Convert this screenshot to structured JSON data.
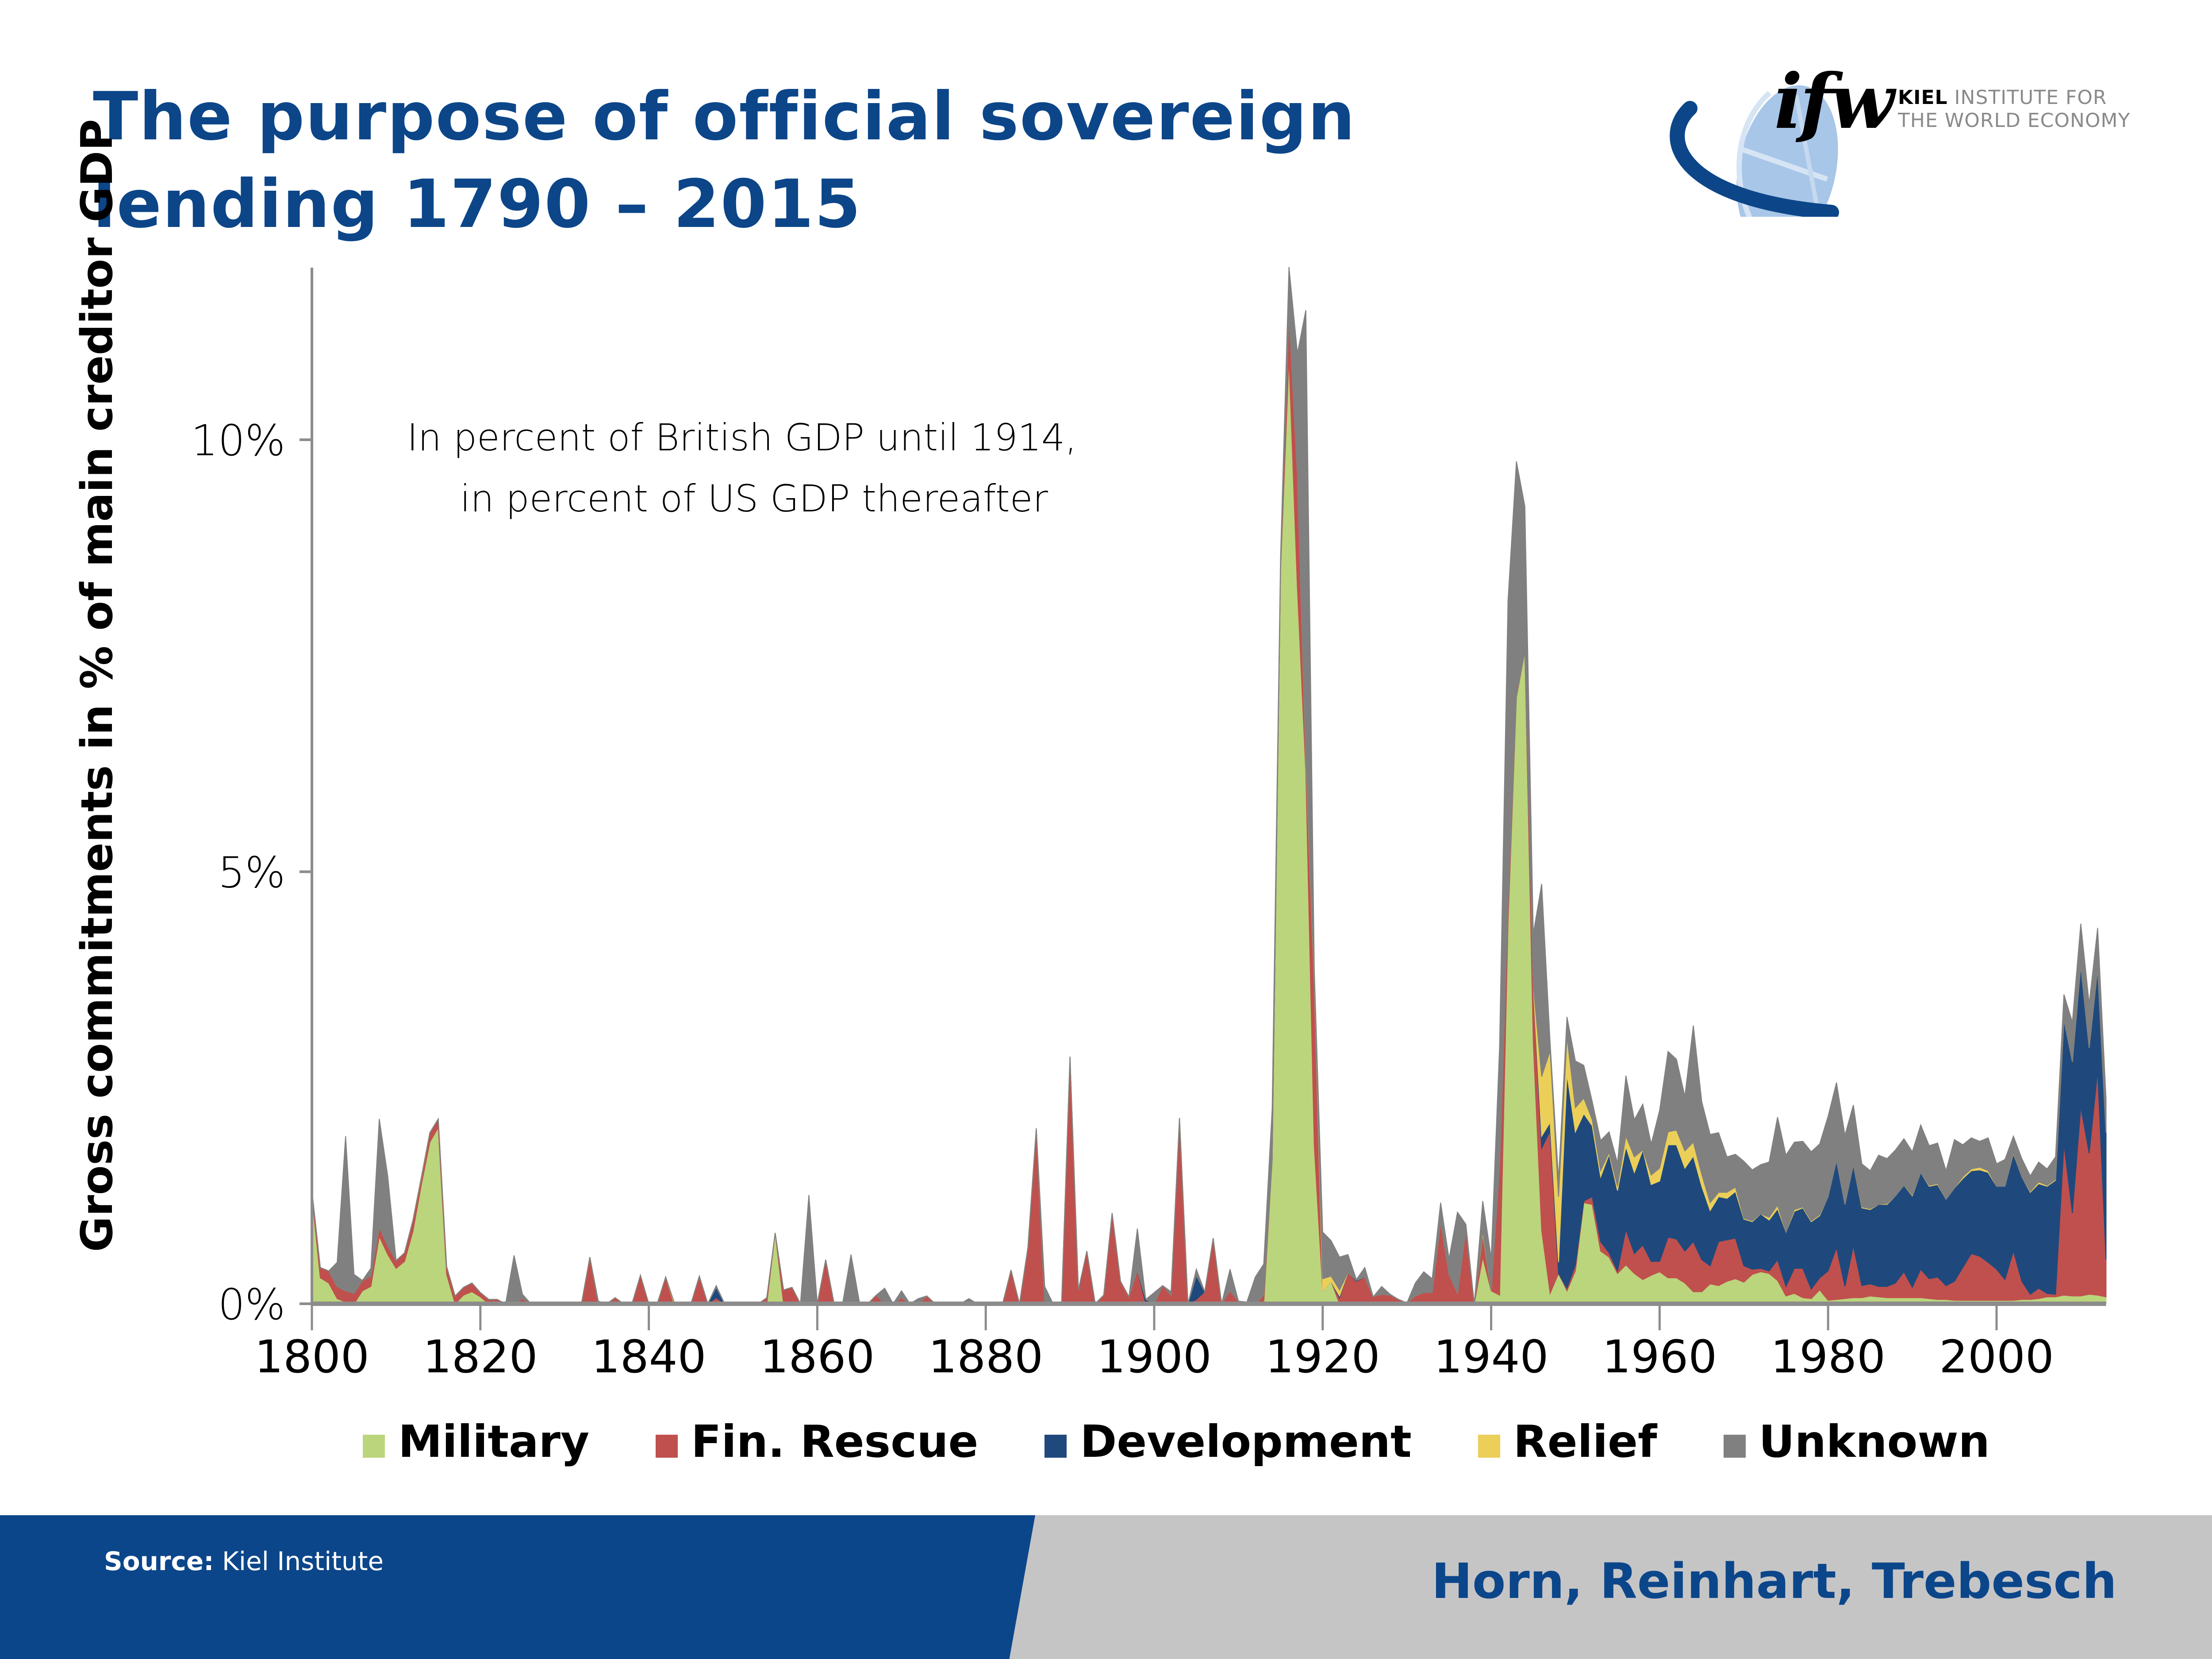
{
  "header": {
    "title_line1": "The purpose of official sovereign",
    "title_line2": "lending 1790 – 2015"
  },
  "logo": {
    "mark": "ifw",
    "line1_bold": "KIEL",
    "line1_rest": " INSTITUTE FOR",
    "line2": "THE WORLD ECONOMY",
    "icon": "globe-icon"
  },
  "footer": {
    "source_label": "Source:",
    "source_value": " Kiel Institute",
    "authors": "Horn, Reinhart, Trebesch"
  },
  "colors": {
    "title": "#0c4689",
    "military": "#bbd57c",
    "fin_rescue": "#c0504d",
    "development": "#1f497d",
    "relief": "#ebcf58",
    "unknown": "#808080",
    "footer_blue": "#0c468a",
    "footer_gray": "#c6c5c6"
  },
  "chart_data": {
    "type": "area",
    "stacked": true,
    "title": "The purpose of official sovereign lending 1790 – 2015",
    "xlabel": "",
    "ylabel": "Gross commitments  in % of main creditor GDP",
    "annotation": [
      "In percent of British GDP until 1914,",
      "in percent of US GDP thereafter"
    ],
    "xlim": [
      1800,
      2013
    ],
    "ylim": [
      0,
      12
    ],
    "x_ticks": [
      1800,
      1820,
      1840,
      1860,
      1880,
      1900,
      1920,
      1940,
      1960,
      1980,
      2000
    ],
    "x_tick_labels": [
      "1800",
      "1820",
      "1840",
      "1860",
      "1880",
      "1900",
      "1920",
      "1940",
      "1960",
      "1980",
      "2000"
    ],
    "y_ticks": [
      0,
      5,
      10
    ],
    "y_tick_labels": [
      "0%",
      "5%",
      "10%"
    ],
    "grid": false,
    "legend": {
      "position": "bottom",
      "entries": [
        "Military",
        "Fin. Rescue",
        "Development",
        "Relief",
        "Unknown"
      ]
    },
    "x_start": 1800,
    "series": [
      {
        "name": "Military",
        "key": "military",
        "values": []
      },
      {
        "name": "Fin. Rescue",
        "key": "fin_rescue",
        "values": []
      },
      {
        "name": "Development",
        "key": "development",
        "values": []
      },
      {
        "name": "Relief",
        "key": "relief",
        "values": []
      },
      {
        "name": "Unknown",
        "key": "unknown",
        "values": []
      }
    ],
    "points": {
      "1800": [
        1.25,
        0.06,
        0,
        0,
        0
      ],
      "1801": [
        0.3,
        0.12,
        0,
        0,
        0
      ],
      "1802": [
        0.24,
        0.14,
        0,
        0,
        0
      ],
      "1803": [
        0.06,
        0.14,
        0,
        0,
        0.28
      ],
      "1804": [
        0.02,
        0.13,
        0,
        0,
        1.79
      ],
      "1805": [
        0,
        0.12,
        0,
        0,
        0.22
      ],
      "1806": [
        0.15,
        0.12,
        0,
        0,
        0
      ],
      "1807": [
        0.2,
        0.12,
        0,
        0,
        0.09
      ],
      "1808": [
        0.78,
        0.11,
        0,
        0,
        1.25
      ],
      "1809": [
        0.57,
        0.1,
        0,
        0,
        0.81
      ],
      "1810": [
        0.41,
        0.09,
        0,
        0,
        0
      ],
      "1811": [
        0.49,
        0.1,
        0,
        0,
        0
      ],
      "1812": [
        0.84,
        0.13,
        0,
        0,
        0
      ],
      "1813": [
        1.38,
        0.08,
        0,
        0.01,
        0
      ],
      "1814": [
        1.87,
        0.11,
        0,
        0,
        0
      ],
      "1815": [
        2.04,
        0.1,
        0,
        0,
        0
      ],
      "1816": [
        0.34,
        0.09,
        0,
        0,
        0
      ],
      "1817": [
        0,
        0.09,
        0,
        0,
        0
      ],
      "1818": [
        0.1,
        0.09,
        0,
        0,
        0
      ],
      "1819": [
        0.14,
        0.1,
        0,
        0,
        0
      ],
      "1820": [
        0.08,
        0.05,
        0,
        0,
        0
      ],
      "1821": [
        0,
        0.05,
        0,
        0,
        0
      ],
      "1822": [
        0,
        0.05,
        0,
        0,
        0
      ],
      "1824": [
        0,
        0,
        0,
        0,
        0.56
      ],
      "1825": [
        0,
        0.06,
        0,
        0,
        0.05
      ],
      "1829": [
        0,
        0,
        0,
        0,
        0.01
      ],
      "1833": [
        0,
        0.54,
        0,
        0,
        0
      ],
      "1834": [
        0,
        0,
        0,
        0,
        0.03
      ],
      "1836": [
        0,
        0.07,
        0,
        0,
        0
      ],
      "1839": [
        0,
        0.33,
        0,
        0,
        0
      ],
      "1842": [
        0,
        0.31,
        0,
        0,
        0
      ],
      "1843": [
        0,
        0,
        0,
        0.02,
        0
      ],
      "1846": [
        0,
        0.32,
        0,
        0,
        0
      ],
      "1848": [
        0,
        0.07,
        0.12,
        0,
        0.02
      ],
      "1854": [
        0,
        0.07,
        0,
        0,
        0
      ],
      "1855": [
        0.82,
        0,
        0,
        0,
        0
      ],
      "1856": [
        0,
        0.16,
        0,
        0,
        0
      ],
      "1857": [
        0,
        0.19,
        0,
        0,
        0
      ],
      "1859": [
        0,
        0,
        0,
        0,
        1.26
      ],
      "1861": [
        0,
        0.51,
        0,
        0,
        0
      ],
      "1864": [
        0,
        0,
        0,
        0,
        0.57
      ],
      "1865": [
        0,
        0.02,
        0,
        0,
        0
      ],
      "1867": [
        0,
        0.1,
        0,
        0,
        0
      ],
      "1868": [
        0,
        0,
        0,
        0,
        0.18
      ],
      "1870": [
        0,
        0.07,
        0,
        0,
        0.08
      ],
      "1872": [
        0,
        0,
        0,
        0,
        0.06
      ],
      "1873": [
        0,
        0.09,
        0,
        0,
        0
      ],
      "1878": [
        0,
        0,
        0,
        0,
        0.06
      ],
      "1880": [
        0,
        0.01,
        0,
        0,
        0
      ],
      "1883": [
        0,
        0.39,
        0,
        0,
        0
      ],
      "1885": [
        0,
        0.65,
        0,
        0,
        0
      ],
      "1886": [
        0,
        2.03,
        0,
        0,
        0
      ],
      "1887": [
        0,
        0,
        0,
        0,
        0.2
      ],
      "1890": [
        0,
        2.86,
        0,
        0,
        0
      ],
      "1891": [
        0,
        0.16,
        0,
        0,
        0
      ],
      "1892": [
        0,
        0.61,
        0,
        0,
        0
      ],
      "1894": [
        0,
        0.1,
        0,
        0,
        0
      ],
      "1895": [
        0,
        1.05,
        0,
        0,
        0
      ],
      "1896": [
        0,
        0.26,
        0,
        0,
        0
      ],
      "1897": [
        0,
        0.08,
        0,
        0,
        0
      ],
      "1898": [
        0,
        0.39,
        0,
        0,
        0.48
      ],
      "1899": [
        0,
        0,
        0.05,
        0,
        0
      ],
      "1900": [
        0,
        0,
        0,
        0,
        0.13
      ],
      "1901": [
        0,
        0.21,
        0,
        0,
        0
      ],
      "1902": [
        0,
        0.1,
        0,
        0,
        0.04
      ],
      "1903": [
        0,
        2.15,
        0,
        0,
        0
      ],
      "1905": [
        0,
        0.05,
        0.28,
        0,
        0.07
      ],
      "1906": [
        0,
        0.14,
        0,
        0,
        0
      ],
      "1907": [
        0,
        0.76,
        0,
        0,
        0
      ],
      "1909": [
        0,
        0.15,
        0,
        0,
        0.25
      ],
      "1910": [
        0,
        0.03,
        0,
        0,
        0
      ],
      "1911": [
        0,
        0,
        0.01,
        0,
        0.01
      ],
      "1912": [
        0,
        0,
        0,
        0,
        0.31
      ],
      "1913": [
        0,
        0.1,
        0,
        0,
        0.36
      ],
      "1914": [
        1.67,
        0,
        0,
        0,
        0.59
      ],
      "1915": [
        8.5,
        0.05,
        0,
        0,
        0.1
      ],
      "1916": [
        10.96,
        0.51,
        0,
        0,
        0.53
      ],
      "1917": [
        8.28,
        1.32,
        0,
        0,
        1.4
      ],
      "1918": [
        6.15,
        0.15,
        0,
        0.05,
        5.15
      ],
      "1919": [
        1.83,
        1.89,
        0,
        0.05,
        0.1
      ],
      "1920": [
        0.15,
        0,
        0,
        0.14,
        0.54
      ],
      "1921": [
        0.26,
        0,
        0,
        0.06,
        0.41
      ],
      "1922": [
        0,
        0.07,
        0.02,
        0.07,
        0.38
      ],
      "1923": [
        0,
        0.36,
        0,
        0,
        0.21
      ],
      "1924": [
        0,
        0.26,
        0.01,
        0,
        0.01
      ],
      "1925": [
        0,
        0.31,
        0,
        0,
        0.11
      ],
      "1926": [
        0,
        0.08,
        0,
        0,
        0
      ],
      "1927": [
        0,
        0.11,
        0,
        0,
        0.09
      ],
      "1928": [
        0,
        0.1,
        0,
        0,
        0.01
      ],
      "1929": [
        0,
        0.05,
        0,
        0,
        0
      ],
      "1930": [
        0,
        0.01,
        0,
        0,
        0
      ],
      "1931": [
        0,
        0.09,
        0,
        0,
        0.15
      ],
      "1932": [
        0,
        0.13,
        0,
        0,
        0.24
      ],
      "1933": [
        0,
        0.13,
        0,
        0,
        0.16
      ],
      "1934": [
        0,
        0.95,
        0,
        0,
        0.22
      ],
      "1935": [
        0,
        0.34,
        0,
        0,
        0.18
      ],
      "1936": [
        0,
        0.12,
        0,
        0,
        0.94
      ],
      "1937": [
        0,
        0.85,
        0,
        0,
        0.07
      ],
      "1939": [
        0.54,
        0.26,
        0.01,
        0.03,
        0.35
      ],
      "1940": [
        0.15,
        0,
        0,
        0,
        0.38
      ],
      "1941": [
        0.1,
        1.47,
        0.02,
        0,
        1.38
      ],
      "1942": [
        4.41,
        0.2,
        0,
        0,
        3.53
      ],
      "1943": [
        7.02,
        0.03,
        0,
        0,
        2.7
      ],
      "1944": [
        7.55,
        0,
        0,
        0,
        1.68
      ],
      "1945": [
        3.03,
        0.66,
        0,
        0,
        0.59
      ],
      "1946": [
        0.85,
        0.95,
        0.14,
        0.69,
        2.23
      ],
      "1947": [
        0.12,
        1.88,
        0.1,
        0.83,
        0.09
      ],
      "1948": [
        0.35,
        0,
        0.13,
        0.76,
        0.2
      ],
      "1949": [
        0.15,
        0.03,
        2.48,
        0.43,
        0.23
      ],
      "1950": [
        0.38,
        0.07,
        1.54,
        0.28,
        0.54
      ],
      "1951": [
        1.17,
        0.02,
        1.01,
        0.18,
        0.38
      ],
      "1952": [
        1.15,
        0.09,
        0.82,
        0.07,
        0.21
      ],
      "1953": [
        0.61,
        0.11,
        0.75,
        0.07,
        0.35
      ],
      "1954": [
        0.54,
        0.05,
        1.14,
        0.02,
        0.24
      ],
      "1955": [
        0.35,
        0.03,
        0.93,
        0.05,
        0.27
      ],
      "1956": [
        0.45,
        0.41,
        0.96,
        0.12,
        0.7
      ],
      "1957": [
        0.35,
        0.23,
        0.94,
        0.18,
        0.43
      ],
      "1958": [
        0.28,
        0.4,
        1.1,
        0,
        0.53
      ],
      "1959": [
        0.33,
        0.16,
        0.89,
        0.11,
        0.36
      ],
      "1960": [
        0.37,
        0.12,
        0.93,
        0.15,
        0.67
      ],
      "1961": [
        0.3,
        0.47,
        1.07,
        0.15,
        0.93
      ],
      "1962": [
        0.3,
        0.45,
        1.09,
        0.17,
        0.82
      ],
      "1963": [
        0.24,
        0.37,
        0.96,
        0.2,
        0.63
      ],
      "1964": [
        0.14,
        0.58,
        0.99,
        0.16,
        1.35
      ],
      "1965": [
        0.14,
        0.37,
        0.85,
        0.14,
        0.84
      ],
      "1966": [
        0.23,
        0.21,
        0.64,
        0.09,
        0.79
      ],
      "1967": [
        0.21,
        0.51,
        0.52,
        0.05,
        0.69
      ],
      "1968": [
        0.26,
        0.48,
        0.48,
        0.07,
        0.41
      ],
      "1969": [
        0.29,
        0.47,
        0.54,
        0.05,
        0.38
      ],
      "1970": [
        0.25,
        0.19,
        0.54,
        0.01,
        0.66
      ],
      "1971": [
        0.34,
        0.06,
        0.55,
        0.01,
        0.59
      ],
      "1972": [
        0.37,
        0.04,
        0.63,
        0,
        0.57
      ],
      "1973": [
        0.35,
        0.03,
        0.59,
        0.03,
        0.64
      ],
      "1974": [
        0.27,
        0.24,
        0.59,
        0.04,
        1.02
      ],
      "1975": [
        0.09,
        0.11,
        0.63,
        0,
        0.89
      ],
      "1976": [
        0.12,
        0.29,
        0.66,
        0.02,
        0.78
      ],
      "1977": [
        0.07,
        0.34,
        0.7,
        0.01,
        0.76
      ],
      "1978": [
        0.06,
        0.11,
        0.78,
        0.01,
        0.8
      ],
      "1979": [
        0.16,
        0.14,
        0.72,
        0.01,
        0.82
      ],
      "1980": [
        0.04,
        0.34,
        0.86,
        0,
        0.93
      ],
      "1981": [
        0.05,
        0.6,
        1.01,
        0,
        0.9
      ],
      "1982": [
        0.06,
        0.14,
        0.95,
        0,
        0.8
      ],
      "1983": [
        0.07,
        0.6,
        0.94,
        0,
        0.69
      ],
      "1984": [
        0.07,
        0.14,
        0.9,
        0.01,
        0.5
      ],
      "1985": [
        0.09,
        0.14,
        0.86,
        0.01,
        0.44
      ],
      "1986": [
        0.08,
        0.12,
        0.95,
        0,
        0.57
      ],
      "1987": [
        0.07,
        0.13,
        0.95,
        0.01,
        0.52
      ],
      "1988": [
        0.07,
        0.17,
        1.01,
        0,
        0.53
      ],
      "1989": [
        0.07,
        0.3,
        1.0,
        0,
        0.54
      ],
      "1990": [
        0.07,
        0.12,
        1.06,
        0.01,
        0.5
      ],
      "1991": [
        0.07,
        0.33,
        1.12,
        0,
        0.55
      ],
      "1992": [
        0.06,
        0.23,
        1.07,
        0.01,
        0.46
      ],
      "1993": [
        0.05,
        0.26,
        1.07,
        0.01,
        0.47
      ],
      "1994": [
        0.05,
        0.16,
        1.0,
        0,
        0.33
      ],
      "1995": [
        0.04,
        0.22,
        1.08,
        0,
        0.56
      ],
      "1996": [
        0.04,
        0.38,
        1.03,
        0.02,
        0.37
      ],
      "1997": [
        0.04,
        0.54,
        0.96,
        0.02,
        0.36
      ],
      "1998": [
        0.04,
        0.51,
        1.0,
        0.03,
        0.3
      ],
      "1999": [
        0.04,
        0.44,
        1.04,
        0.02,
        0.38
      ],
      "2000": [
        0.04,
        0.36,
        0.96,
        0,
        0.26
      ],
      "2001": [
        0.04,
        0.24,
        1.08,
        0,
        0.31
      ],
      "2002": [
        0.04,
        0.57,
        1.13,
        0.01,
        0.19
      ],
      "2003": [
        0.05,
        0.21,
        1.21,
        0,
        0.21
      ],
      "2004": [
        0.05,
        0.06,
        1.18,
        0.01,
        0.18
      ],
      "2005": [
        0.06,
        0.12,
        1.21,
        0.02,
        0.23
      ],
      "2006": [
        0.08,
        0.04,
        1.24,
        0.01,
        0.19
      ],
      "2007": [
        0.08,
        0.03,
        1.32,
        0.01,
        0.26
      ],
      "2008": [
        0.1,
        1.75,
        1.44,
        0,
        0.29
      ],
      "2009": [
        0.09,
        0.96,
        1.75,
        0,
        0.46
      ],
      "2010": [
        0.09,
        2.19,
        1.64,
        0,
        0.48
      ],
      "2011": [
        0.11,
        1.63,
        1.22,
        0,
        0.51
      ],
      "2012": [
        0.1,
        2.6,
        1.18,
        0,
        0.47
      ],
      "2013": [
        0.08,
        0.43,
        1.47,
        0,
        0.39
      ]
    },
    "points_note": "points[year] = [Military, Fin. Rescue, Development, Relief, Unknown] in % of main creditor GDP; years not listed are 0"
  }
}
